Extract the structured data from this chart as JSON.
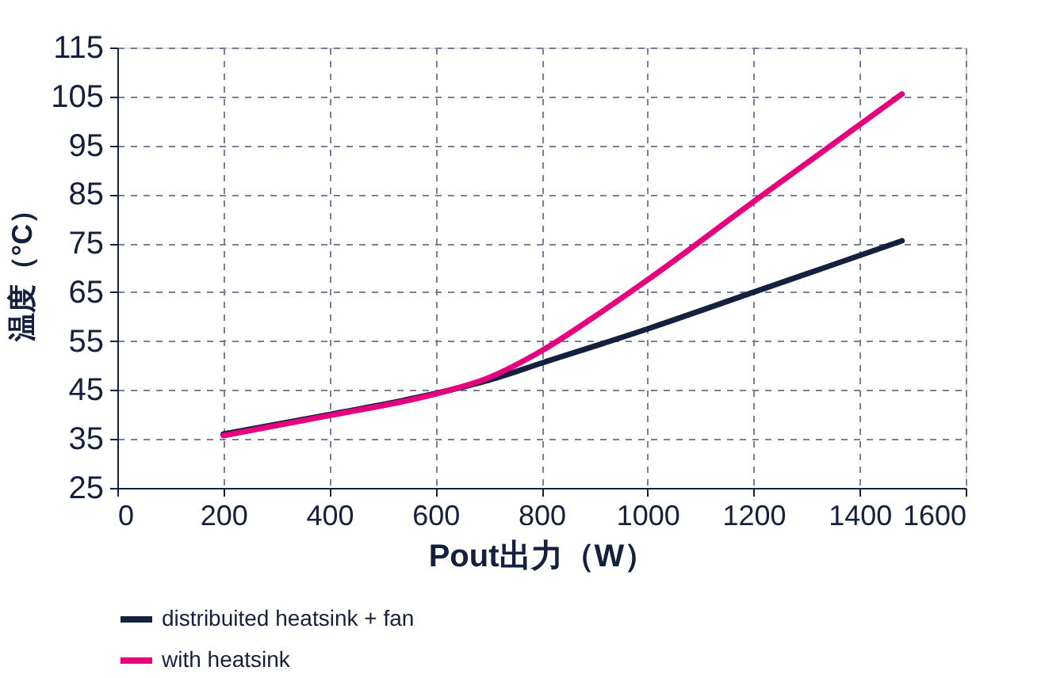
{
  "chart_data": {
    "type": "line",
    "xlabel": "Pout出力（W）",
    "ylabel": "温度（°C）",
    "xlim": [
      0,
      1600
    ],
    "xticks": [
      0,
      200,
      400,
      600,
      800,
      1000,
      1200,
      1400,
      1600
    ],
    "ylim": [
      25,
      115
    ],
    "yticks": [
      25,
      35,
      45,
      55,
      65,
      75,
      85,
      95,
      105,
      115
    ],
    "grid": true,
    "legend": "bottom",
    "line_style": "solid",
    "marker": "none",
    "series": [
      {
        "name": "distribuited heatsink + fan",
        "color": "#13213f",
        "x": [
          200,
          400,
          600,
          700,
          800,
          1000,
          1200,
          1480
        ],
        "values": [
          36,
          40,
          44.3,
          47,
          50.5,
          57.5,
          65,
          75.5
        ]
      },
      {
        "name": "with heatsink",
        "color": "#e6007e",
        "x": [
          200,
          400,
          600,
          700,
          800,
          900,
          1000,
          1200,
          1480
        ],
        "values": [
          35.7,
          39.8,
          44.2,
          47.5,
          53,
          60,
          67.5,
          83.5,
          105.5
        ]
      }
    ]
  }
}
